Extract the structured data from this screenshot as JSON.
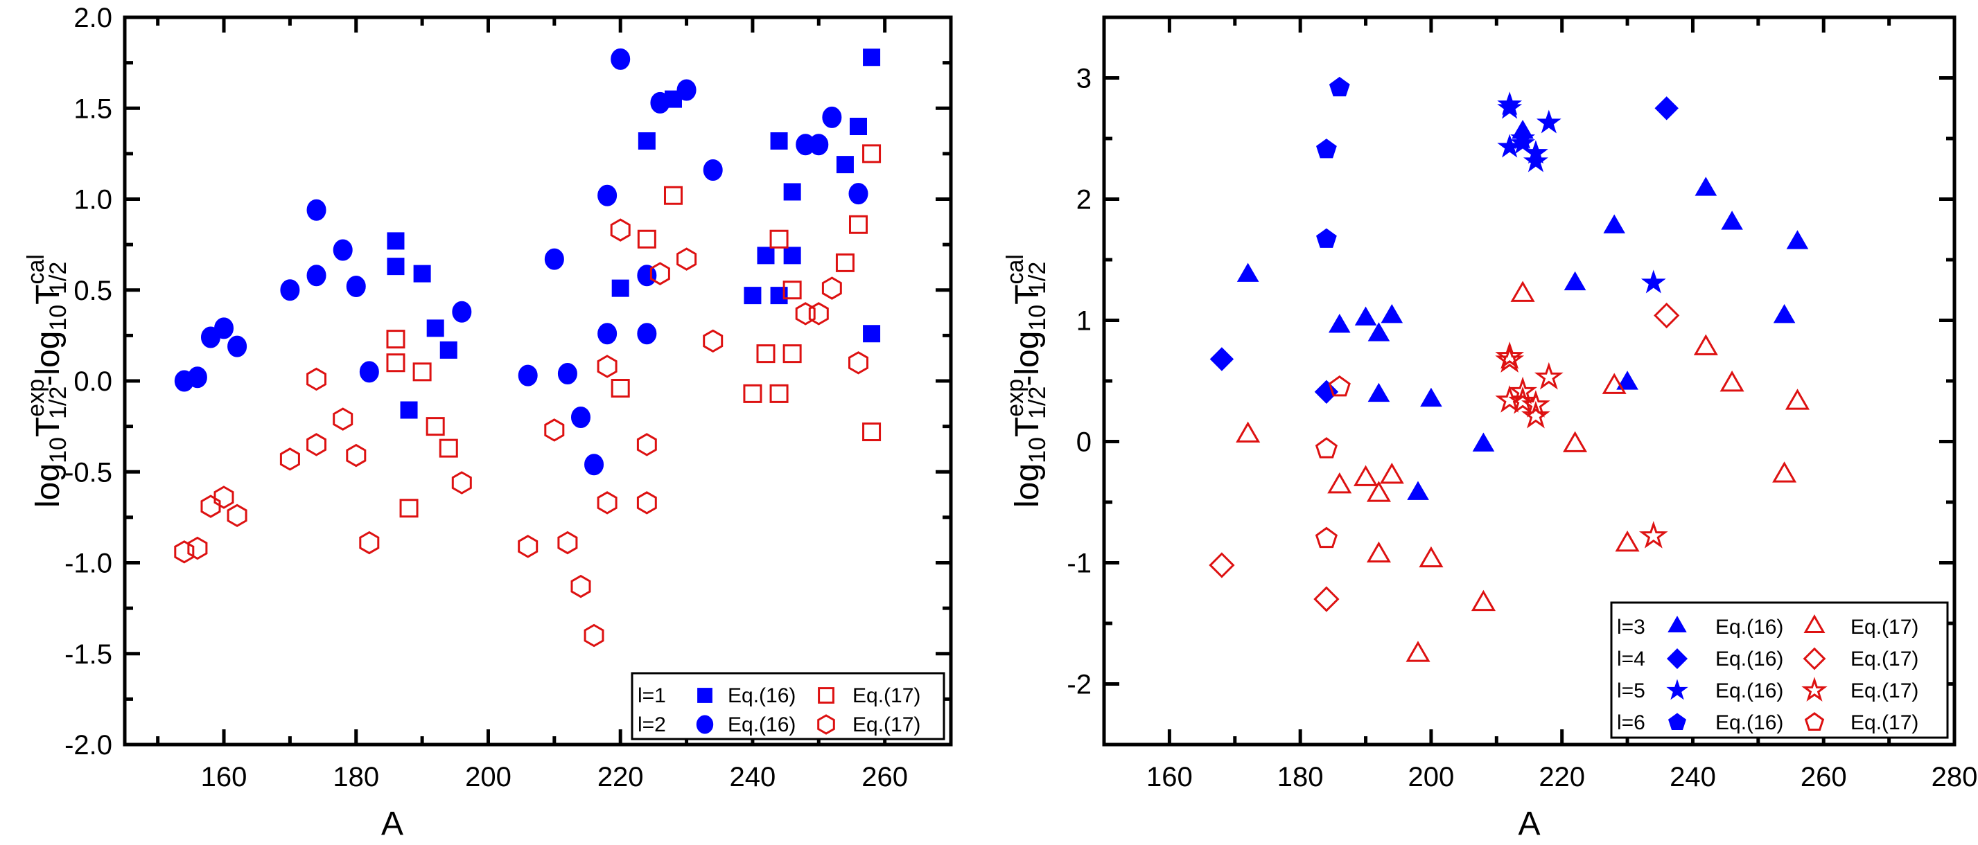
{
  "colors": {
    "eq16": "#0000ff",
    "eq17": "#dd1111",
    "axis": "#000000"
  },
  "chart_data": [
    {
      "type": "scatter",
      "panel": "left",
      "xlabel": "A",
      "ylabel": {
        "base": "log",
        "sub10a": "10",
        "T1": "T",
        "sup1": "exp",
        "sub1": "1/2",
        "dash": "-log",
        "sub10b": "10",
        "T2": "T",
        "sup2": "cal",
        "sub2": "1/2"
      },
      "xlim": [
        145,
        270
      ],
      "ylim": [
        -2.0,
        2.0
      ],
      "xticks": [
        160,
        180,
        200,
        220,
        240,
        260
      ],
      "xtick_labels": [
        "160",
        "180",
        "200",
        "220",
        "240",
        "260"
      ],
      "yticks": [
        -2.0,
        -1.5,
        -1.0,
        -0.5,
        0.0,
        0.5,
        1.0,
        1.5,
        2.0
      ],
      "ytick_labels": [
        "-2.0",
        "-1.5",
        "-1.0",
        "-0.5",
        "0.0",
        "0.5",
        "1.0",
        "1.5",
        "2.0"
      ],
      "legend_position": "bottom-right",
      "series": [
        {
          "name": "l=1 Eq.(16)",
          "l": "l=1",
          "eq": "Eq.(16)",
          "marker": "square",
          "fill": true,
          "points": [
            [
              186,
              0.77
            ],
            [
              186,
              0.63
            ],
            [
              190,
              0.59
            ],
            [
              192,
              0.29
            ],
            [
              194,
              0.17
            ],
            [
              188,
              -0.16
            ],
            [
              220,
              0.51
            ],
            [
              224,
              1.32
            ],
            [
              228,
              1.55
            ],
            [
              240,
              0.47
            ],
            [
              242,
              0.69
            ],
            [
              244,
              1.32
            ],
            [
              244,
              0.47
            ],
            [
              246,
              1.04
            ],
            [
              246,
              0.69
            ],
            [
              254,
              1.19
            ],
            [
              256,
              1.4
            ],
            [
              258,
              1.78
            ],
            [
              258,
              0.26
            ]
          ]
        },
        {
          "name": "l=1 Eq.(17)",
          "l": "l=1",
          "eq": "Eq.(17)",
          "marker": "square",
          "fill": false,
          "points": [
            [
              186,
              0.23
            ],
            [
              186,
              0.1
            ],
            [
              190,
              0.05
            ],
            [
              192,
              -0.25
            ],
            [
              194,
              -0.37
            ],
            [
              188,
              -0.7
            ],
            [
              220,
              -0.04
            ],
            [
              224,
              0.78
            ],
            [
              228,
              1.02
            ],
            [
              240,
              -0.07
            ],
            [
              242,
              0.15
            ],
            [
              244,
              0.78
            ],
            [
              244,
              -0.07
            ],
            [
              246,
              0.5
            ],
            [
              246,
              0.15
            ],
            [
              254,
              0.65
            ],
            [
              256,
              0.86
            ],
            [
              258,
              1.25
            ],
            [
              258,
              -0.28
            ]
          ]
        },
        {
          "name": "l=2 Eq.(16)",
          "l": "l=2",
          "eq": "Eq.(16)",
          "marker": "circle",
          "fill": true,
          "points": [
            [
              154,
              0.0
            ],
            [
              156,
              0.02
            ],
            [
              158,
              0.24
            ],
            [
              160,
              0.29
            ],
            [
              162,
              0.19
            ],
            [
              170,
              0.5
            ],
            [
              174,
              0.58
            ],
            [
              174,
              0.94
            ],
            [
              178,
              0.72
            ],
            [
              180,
              0.52
            ],
            [
              182,
              0.05
            ],
            [
              196,
              0.38
            ],
            [
              206,
              0.03
            ],
            [
              210,
              0.67
            ],
            [
              212,
              0.04
            ],
            [
              214,
              -0.2
            ],
            [
              216,
              -0.46
            ],
            [
              218,
              0.26
            ],
            [
              218,
              1.02
            ],
            [
              220,
              1.77
            ],
            [
              224,
              0.26
            ],
            [
              224,
              0.58
            ],
            [
              226,
              1.53
            ],
            [
              230,
              1.6
            ],
            [
              234,
              1.16
            ],
            [
              248,
              1.3
            ],
            [
              250,
              1.3
            ],
            [
              252,
              1.45
            ],
            [
              256,
              1.03
            ]
          ]
        },
        {
          "name": "l=2 Eq.(17)",
          "l": "l=2",
          "eq": "Eq.(17)",
          "marker": "hexagon",
          "fill": false,
          "points": [
            [
              154,
              -0.94
            ],
            [
              156,
              -0.92
            ],
            [
              158,
              -0.69
            ],
            [
              160,
              -0.64
            ],
            [
              162,
              -0.74
            ],
            [
              170,
              -0.43
            ],
            [
              174,
              -0.35
            ],
            [
              174,
              0.01
            ],
            [
              178,
              -0.21
            ],
            [
              180,
              -0.41
            ],
            [
              182,
              -0.89
            ],
            [
              196,
              -0.56
            ],
            [
              206,
              -0.91
            ],
            [
              210,
              -0.27
            ],
            [
              212,
              -0.89
            ],
            [
              214,
              -1.13
            ],
            [
              216,
              -1.4
            ],
            [
              218,
              -0.67
            ],
            [
              218,
              0.08
            ],
            [
              220,
              0.83
            ],
            [
              224,
              -0.67
            ],
            [
              224,
              -0.35
            ],
            [
              226,
              0.59
            ],
            [
              230,
              0.67
            ],
            [
              234,
              0.22
            ],
            [
              248,
              0.37
            ],
            [
              250,
              0.37
            ],
            [
              252,
              0.51
            ],
            [
              256,
              0.1
            ]
          ]
        }
      ],
      "legend_rows": [
        {
          "l": "l=1",
          "eq16": "Eq.(16)",
          "eq17": "Eq.(17)",
          "marker16": "square",
          "marker17": "square"
        },
        {
          "l": "l=2",
          "eq16": "Eq.(16)",
          "eq17": "Eq.(17)",
          "marker16": "circle",
          "marker17": "hexagon"
        }
      ]
    },
    {
      "type": "scatter",
      "panel": "right",
      "xlabel": "A",
      "ylabel": {
        "base": "log",
        "sub10a": "10",
        "T1": "T",
        "sup1": "exp",
        "sub1": "1/2",
        "dash": "-log",
        "sub10b": "10",
        "T2": "T",
        "sup2": "cal",
        "sub2": "1/2"
      },
      "xlim": [
        150,
        280
      ],
      "ylim": [
        -2.5,
        3.5
      ],
      "xticks": [
        160,
        180,
        200,
        220,
        240,
        260,
        280
      ],
      "xtick_labels": [
        "160",
        "180",
        "200",
        "220",
        "240",
        "260",
        "280"
      ],
      "yticks": [
        -2,
        -1,
        0,
        1,
        2,
        3
      ],
      "ytick_labels": [
        "-2",
        "-1",
        "0",
        "1",
        "2",
        "3"
      ],
      "legend_position": "bottom-right",
      "series": [
        {
          "name": "l=3 Eq.(16)",
          "l": "l=3",
          "eq": "Eq.(16)",
          "marker": "triangle",
          "fill": true,
          "points": [
            [
              172,
              1.37
            ],
            [
              186,
              0.95
            ],
            [
              190,
              1.01
            ],
            [
              192,
              0.88
            ],
            [
              194,
              1.03
            ],
            [
              192,
              0.38
            ],
            [
              200,
              0.34
            ],
            [
              198,
              -0.43
            ],
            [
              208,
              -0.03
            ],
            [
              214,
              2.55
            ],
            [
              222,
              1.3
            ],
            [
              228,
              1.77
            ],
            [
              230,
              0.48
            ],
            [
              242,
              2.08
            ],
            [
              246,
              1.8
            ],
            [
              254,
              1.03
            ],
            [
              256,
              1.64
            ]
          ]
        },
        {
          "name": "l=3 Eq.(17)",
          "l": "l=3",
          "eq": "Eq.(17)",
          "marker": "triangle",
          "fill": false,
          "points": [
            [
              172,
              0.05
            ],
            [
              186,
              -0.37
            ],
            [
              190,
              -0.31
            ],
            [
              192,
              -0.44
            ],
            [
              194,
              -0.29
            ],
            [
              192,
              -0.94
            ],
            [
              200,
              -0.98
            ],
            [
              198,
              -1.76
            ],
            [
              208,
              -1.34
            ],
            [
              214,
              1.21
            ],
            [
              222,
              -0.03
            ],
            [
              228,
              0.45
            ],
            [
              230,
              -0.85
            ],
            [
              242,
              0.77
            ],
            [
              246,
              0.47
            ],
            [
              254,
              -0.28
            ],
            [
              256,
              0.32
            ]
          ]
        },
        {
          "name": "l=4 Eq.(16)",
          "l": "l=4",
          "eq": "Eq.(16)",
          "marker": "diamond",
          "fill": true,
          "points": [
            [
              168,
              0.68
            ],
            [
              184,
              0.41
            ],
            [
              236,
              2.75
            ]
          ]
        },
        {
          "name": "l=4 Eq.(17)",
          "l": "l=4",
          "eq": "Eq.(17)",
          "marker": "diamond",
          "fill": false,
          "points": [
            [
              168,
              -1.02
            ],
            [
              184,
              -1.3
            ],
            [
              236,
              1.04
            ]
          ]
        },
        {
          "name": "l=5 Eq.(16)",
          "l": "l=5",
          "eq": "Eq.(16)",
          "marker": "star",
          "fill": true,
          "points": [
            [
              212,
              2.78
            ],
            [
              212,
              2.75
            ],
            [
              212,
              2.43
            ],
            [
              214,
              2.5
            ],
            [
              214,
              2.46
            ],
            [
              216,
              2.38
            ],
            [
              216,
              2.31
            ],
            [
              218,
              2.63
            ],
            [
              234,
              1.31
            ]
          ]
        },
        {
          "name": "l=5 Eq.(17)",
          "l": "l=5",
          "eq": "Eq.(17)",
          "marker": "star",
          "fill": false,
          "points": [
            [
              212,
              0.7
            ],
            [
              212,
              0.67
            ],
            [
              212,
              0.34
            ],
            [
              214,
              0.41
            ],
            [
              214,
              0.33
            ],
            [
              216,
              0.3
            ],
            [
              216,
              0.21
            ],
            [
              218,
              0.53
            ],
            [
              234,
              -0.78
            ]
          ]
        },
        {
          "name": "l=6 Eq.(16)",
          "l": "l=6",
          "eq": "Eq.(16)",
          "marker": "pentagon",
          "fill": true,
          "points": [
            [
              186,
              2.92
            ],
            [
              184,
              2.41
            ],
            [
              184,
              1.67
            ]
          ]
        },
        {
          "name": "l=6 Eq.(17)",
          "l": "l=6",
          "eq": "Eq.(17)",
          "marker": "pentagon",
          "fill": false,
          "points": [
            [
              186,
              0.45
            ],
            [
              184,
              -0.06
            ],
            [
              184,
              -0.8
            ]
          ]
        }
      ],
      "legend_rows": [
        {
          "l": "l=3",
          "eq16": "Eq.(16)",
          "eq17": "Eq.(17)",
          "marker16": "triangle",
          "marker17": "triangle"
        },
        {
          "l": "l=4",
          "eq16": "Eq.(16)",
          "eq17": "Eq.(17)",
          "marker16": "diamond",
          "marker17": "diamond"
        },
        {
          "l": "l=5",
          "eq16": "Eq.(16)",
          "eq17": "Eq.(17)",
          "marker16": "star",
          "marker17": "star"
        },
        {
          "l": "l=6",
          "eq16": "Eq.(16)",
          "eq17": "Eq.(17)",
          "marker16": "pentagon",
          "marker17": "pentagon"
        }
      ]
    }
  ]
}
